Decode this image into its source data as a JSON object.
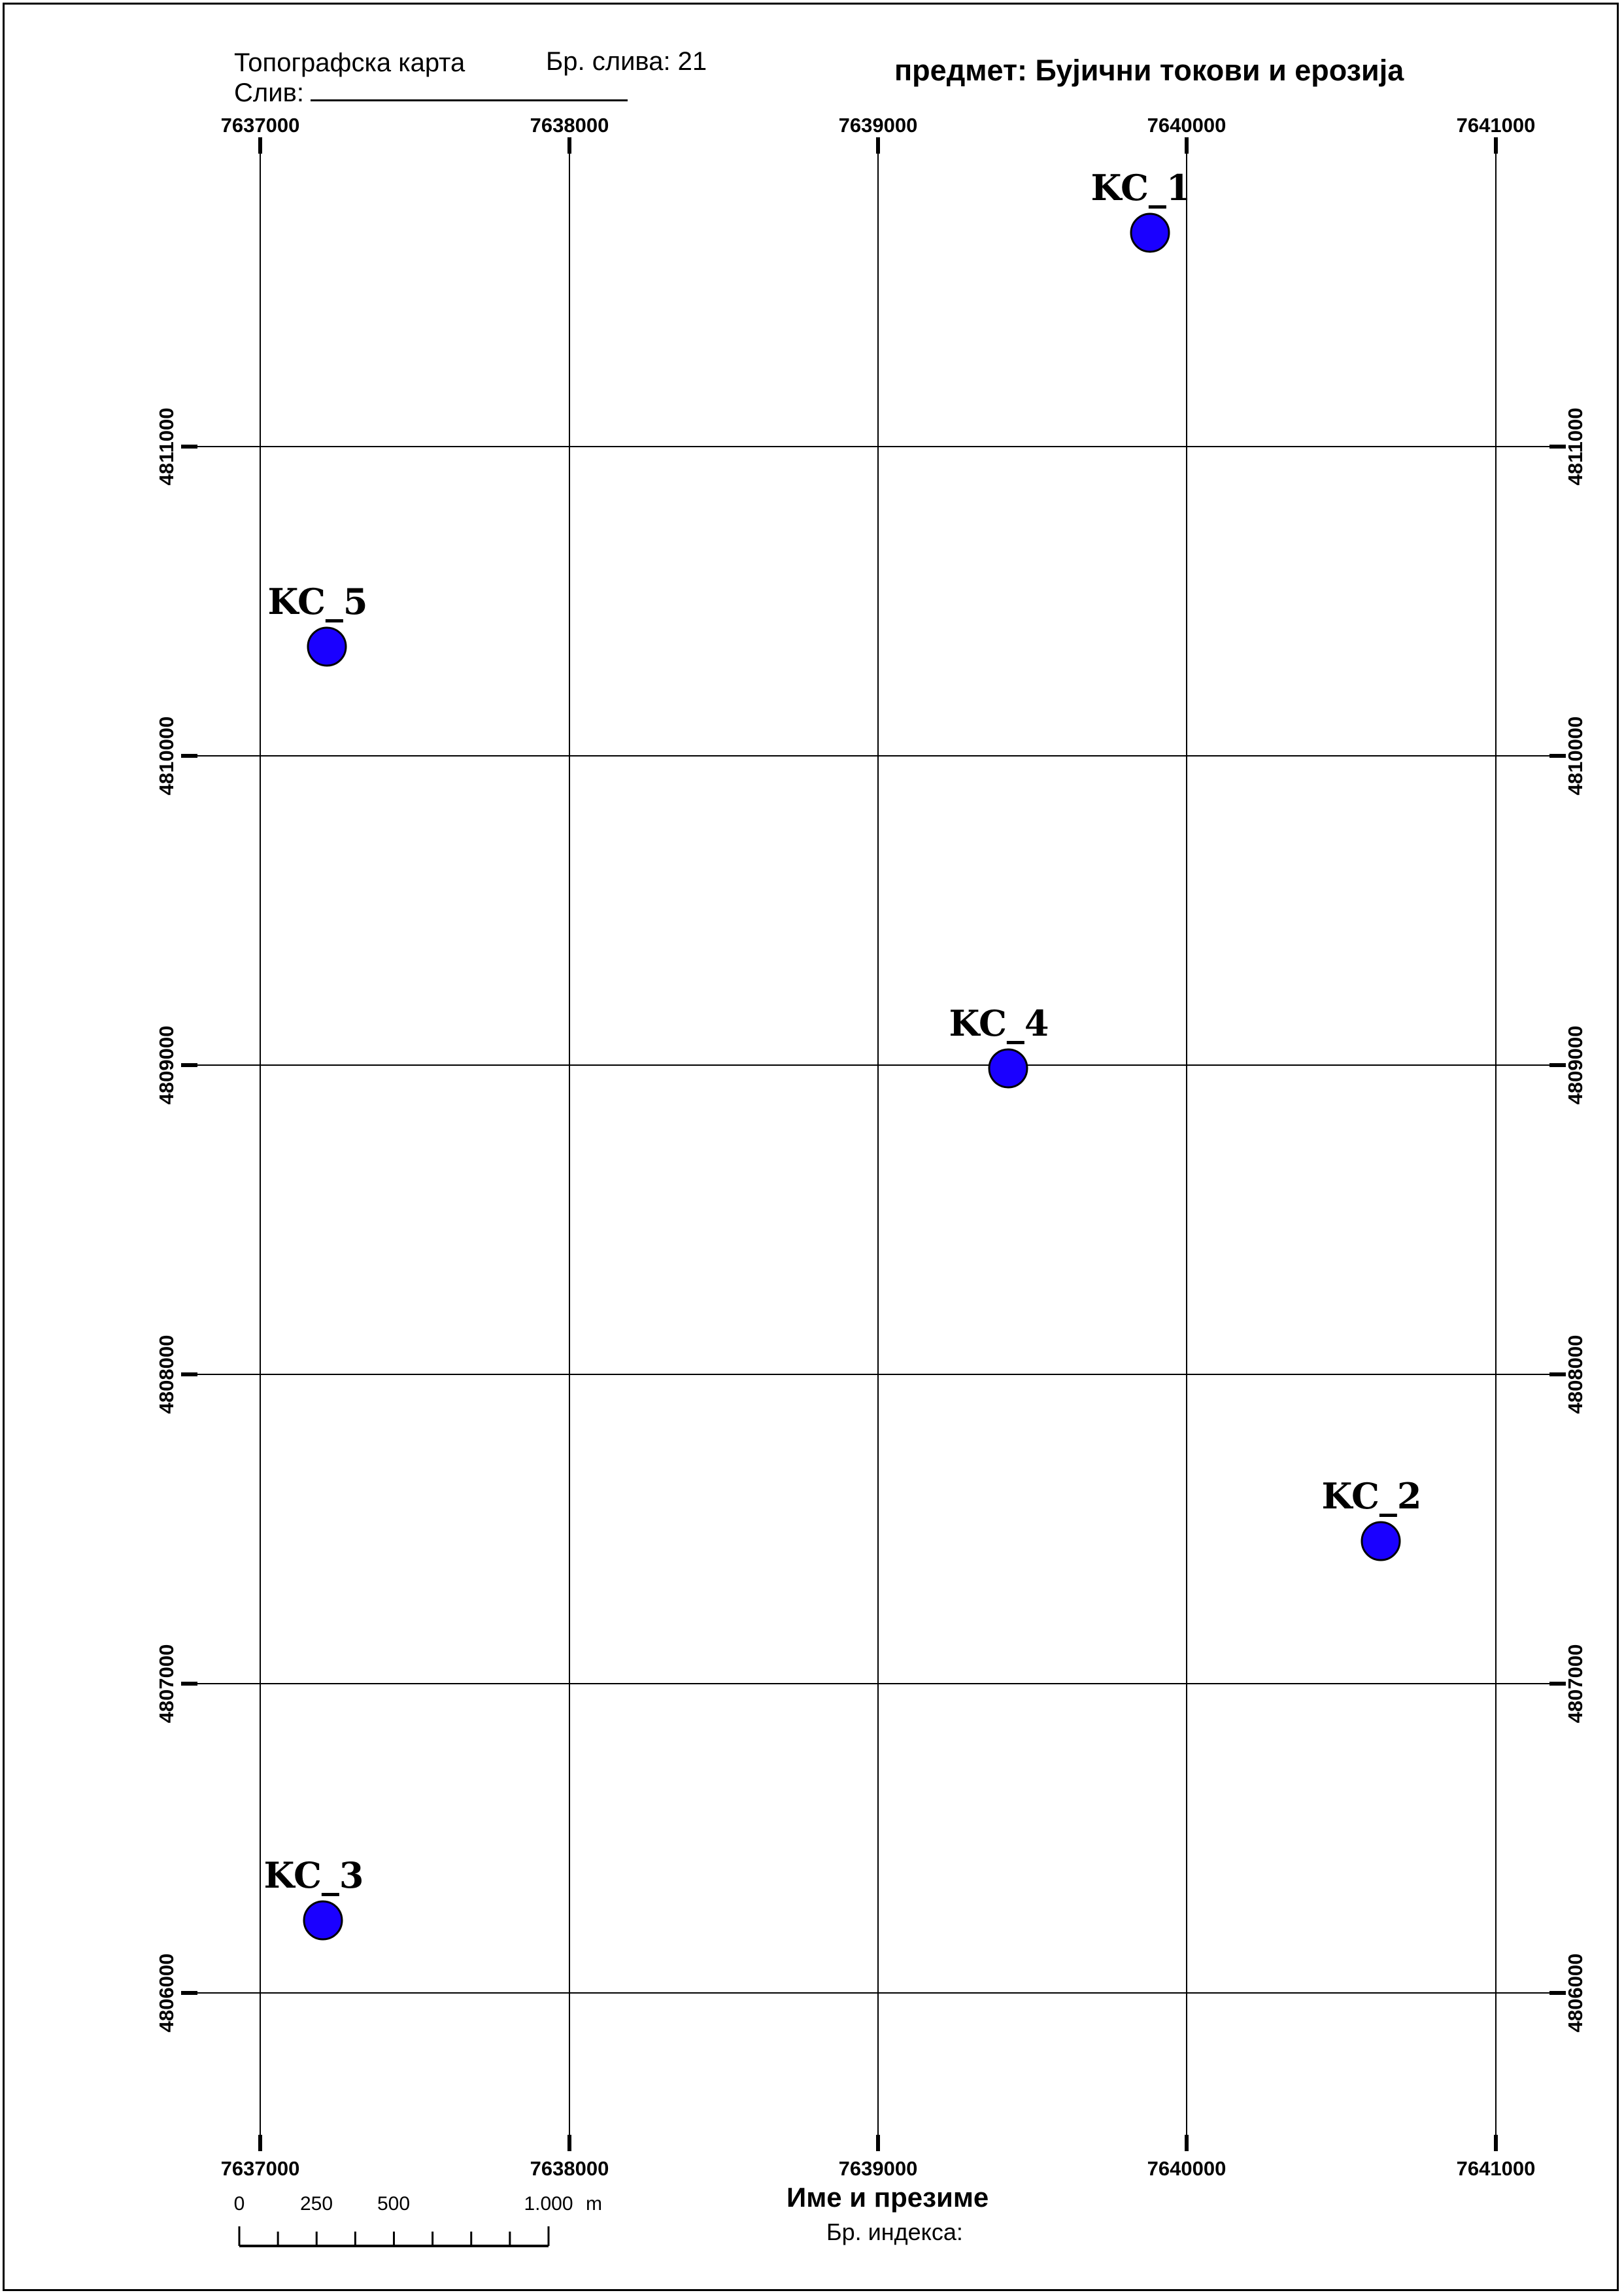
{
  "header": {
    "map_type": "Топографска карта",
    "basin_number": "Бр. слива: 21",
    "basin_label": "Слив:",
    "subject": "предмет: Бујични токови и ерозија"
  },
  "footer": {
    "name_label": "Име и презиме",
    "index_label": "Бр. индекса:"
  },
  "grid": {
    "easting": [
      "7637000",
      "7638000",
      "7639000",
      "7640000",
      "7641000"
    ],
    "northing": [
      "4811000",
      "4810000",
      "4809000",
      "4808000",
      "4807000",
      "4806000"
    ]
  },
  "points": [
    {
      "label": "KC_1",
      "color": "#1a00ff"
    },
    {
      "label": "KC_2",
      "color": "#1a00ff"
    },
    {
      "label": "KC_3",
      "color": "#1a00ff"
    },
    {
      "label": "KC_4",
      "color": "#1a00ff"
    },
    {
      "label": "KC_5",
      "color": "#1a00ff"
    }
  ],
  "scale_bar": {
    "ticks": [
      "0",
      "250",
      "500",
      "1.000"
    ],
    "unit": "m"
  }
}
